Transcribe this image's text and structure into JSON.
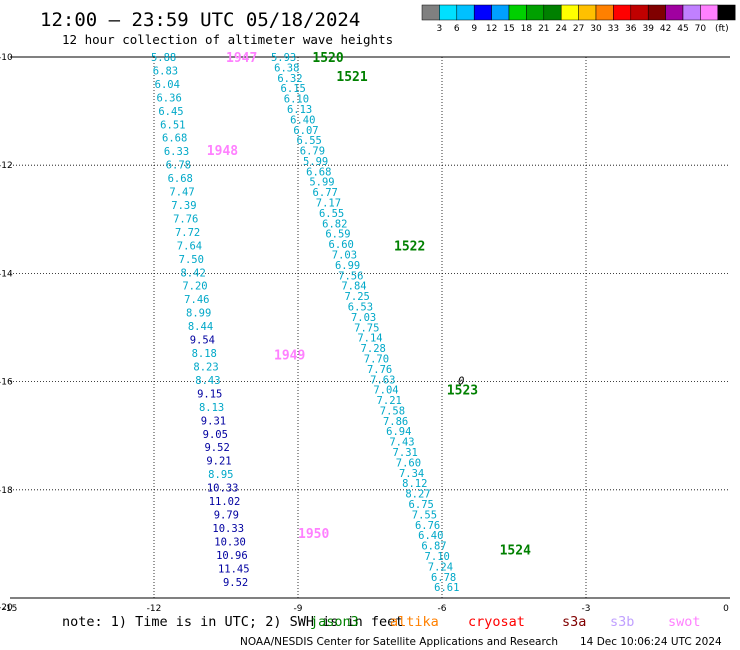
{
  "header": {
    "title": "12:00 – 23:59 UTC 05/18/2024",
    "subtitle": "12 hour collection of altimeter wave heights"
  },
  "legend": {
    "colors": [
      "#808080",
      "#00e0ff",
      "#00c0ff",
      "#0000ff",
      "#00a0ff",
      "#00d000",
      "#00a000",
      "#008000",
      "#ffff00",
      "#ffc000",
      "#ff8000",
      "#ff0000",
      "#c00000",
      "#800000",
      "#a000a0",
      "#c080ff",
      "#ff80ff",
      "#000000"
    ],
    "labels": [
      "3",
      "6",
      "9",
      "12",
      "15",
      "18",
      "21",
      "24",
      "27",
      "30",
      "33",
      "36",
      "39",
      "42",
      "45",
      "70",
      "(ft)"
    ]
  },
  "footer": {
    "note_prefix": "note:  1) Time is in UTC; 2) SWH is in feet",
    "satellites": [
      {
        "name": "jason3",
        "color": "#008000"
      },
      {
        "name": "altika",
        "color": "#ff8000"
      },
      {
        "name": "cryosat",
        "color": "#ff0000"
      },
      {
        "name": "s3a",
        "color": "#800000"
      },
      {
        "name": "s3b",
        "color": "#c0a0ff"
      },
      {
        "name": "swot",
        "color": "#ff80ff"
      }
    ],
    "credit": "NOAA/NESDIS Center for Satellite Applications and Research",
    "timestamp": "14 Dec 10:06:24 UTC 2024"
  },
  "chart_data": {
    "type": "scatter",
    "xlim": [
      -15,
      0
    ],
    "ylim": [
      -20,
      -10
    ],
    "x_ticks": [
      "-15",
      "-12",
      "-9",
      "-6",
      "-3",
      "0"
    ],
    "y_ticks": [
      "-10",
      "-12",
      "-14",
      "-16",
      "-18",
      "-20"
    ],
    "grid": true,
    "tracks": [
      {
        "x_start": -11.8,
        "y_start": -10.0,
        "x_end": -10.3,
        "y_end": -19.7,
        "color": "#00a8c8",
        "dark_color": "#0000a0",
        "values": [
          "5.88",
          "6.83",
          "6.04",
          "6.36",
          "6.45",
          "6.51",
          "6.68",
          "6.33",
          "6.78",
          "6.68",
          "7.47",
          "7.39",
          "7.76",
          "7.72",
          "7.64",
          "7.50",
          "8.42",
          "7.20",
          "7.46",
          "8.99",
          "8.44",
          "9.54",
          "8.18",
          "8.23",
          "8.43",
          "9.15",
          "8.13",
          "9.31",
          "9.05",
          "9.52",
          "9.21",
          "8.95",
          "10.33",
          "11.02",
          "9.79",
          "10.33",
          "10.30",
          "10.96",
          "11.45",
          "9.52"
        ],
        "dark": [
          "9.54",
          "9.15",
          "9.31",
          "9.05",
          "9.52",
          "9.21",
          "10.33",
          "11.02",
          "9.79",
          "10.33",
          "10.30",
          "10.96",
          "11.45",
          "9.52"
        ],
        "passes": [
          {
            "label": "1947",
            "x": -10.5,
            "y": -10.0,
            "color": "#ff80ff"
          },
          {
            "label": "1948",
            "x": -10.9,
            "y": -11.72,
            "color": "#ff80ff"
          },
          {
            "label": "1949",
            "x": -9.5,
            "y": -15.5,
            "color": "#ff80ff"
          },
          {
            "label": "1950",
            "x": -9.0,
            "y": -18.8,
            "color": "#ff80ff"
          }
        ]
      },
      {
        "x_start": -9.3,
        "y_start": -10.0,
        "x_end": -5.9,
        "y_end": -19.8,
        "color": "#00a8c8",
        "values": [
          "5.93",
          "6.38",
          "6.32",
          "6.15",
          "6.10",
          "6.13",
          "6.40",
          "6.07",
          "6.55",
          "6.79",
          "5.99",
          "6.68",
          "5.99",
          "6.77",
          "7.17",
          "6.55",
          "6.82",
          "6.59",
          "6.60",
          "7.03",
          "6.99",
          "7.56",
          "7.84",
          "7.25",
          "6.53",
          "7.03",
          "7.75",
          "7.14",
          "7.28",
          "7.70",
          "7.76",
          "7.63",
          "7.04",
          "7.21",
          "7.58",
          "7.86",
          "6.94",
          "7.43",
          "7.31",
          "7.60",
          "7.34",
          "8.12",
          "8.27",
          "6.75",
          "7.55",
          "6.76",
          "6.40",
          "6.87",
          "7.10",
          "7.24",
          "6.78",
          "6.61"
        ],
        "passes": [
          {
            "label": "1520",
            "x": -8.7,
            "y": -10.0,
            "color": "#008000"
          },
          {
            "label": "1521",
            "x": -8.2,
            "y": -10.35,
            "color": "#008000"
          },
          {
            "label": "1522",
            "x": -7.0,
            "y": -13.48,
            "color": "#008000"
          },
          {
            "label": "1523",
            "x": -5.9,
            "y": -16.15,
            "color": "#008000"
          },
          {
            "label": "1524",
            "x": -4.8,
            "y": -19.1,
            "color": "#008000"
          }
        ]
      }
    ],
    "markers": [
      {
        "symbol": "0",
        "x": -5.6,
        "y": -15.98
      }
    ]
  }
}
